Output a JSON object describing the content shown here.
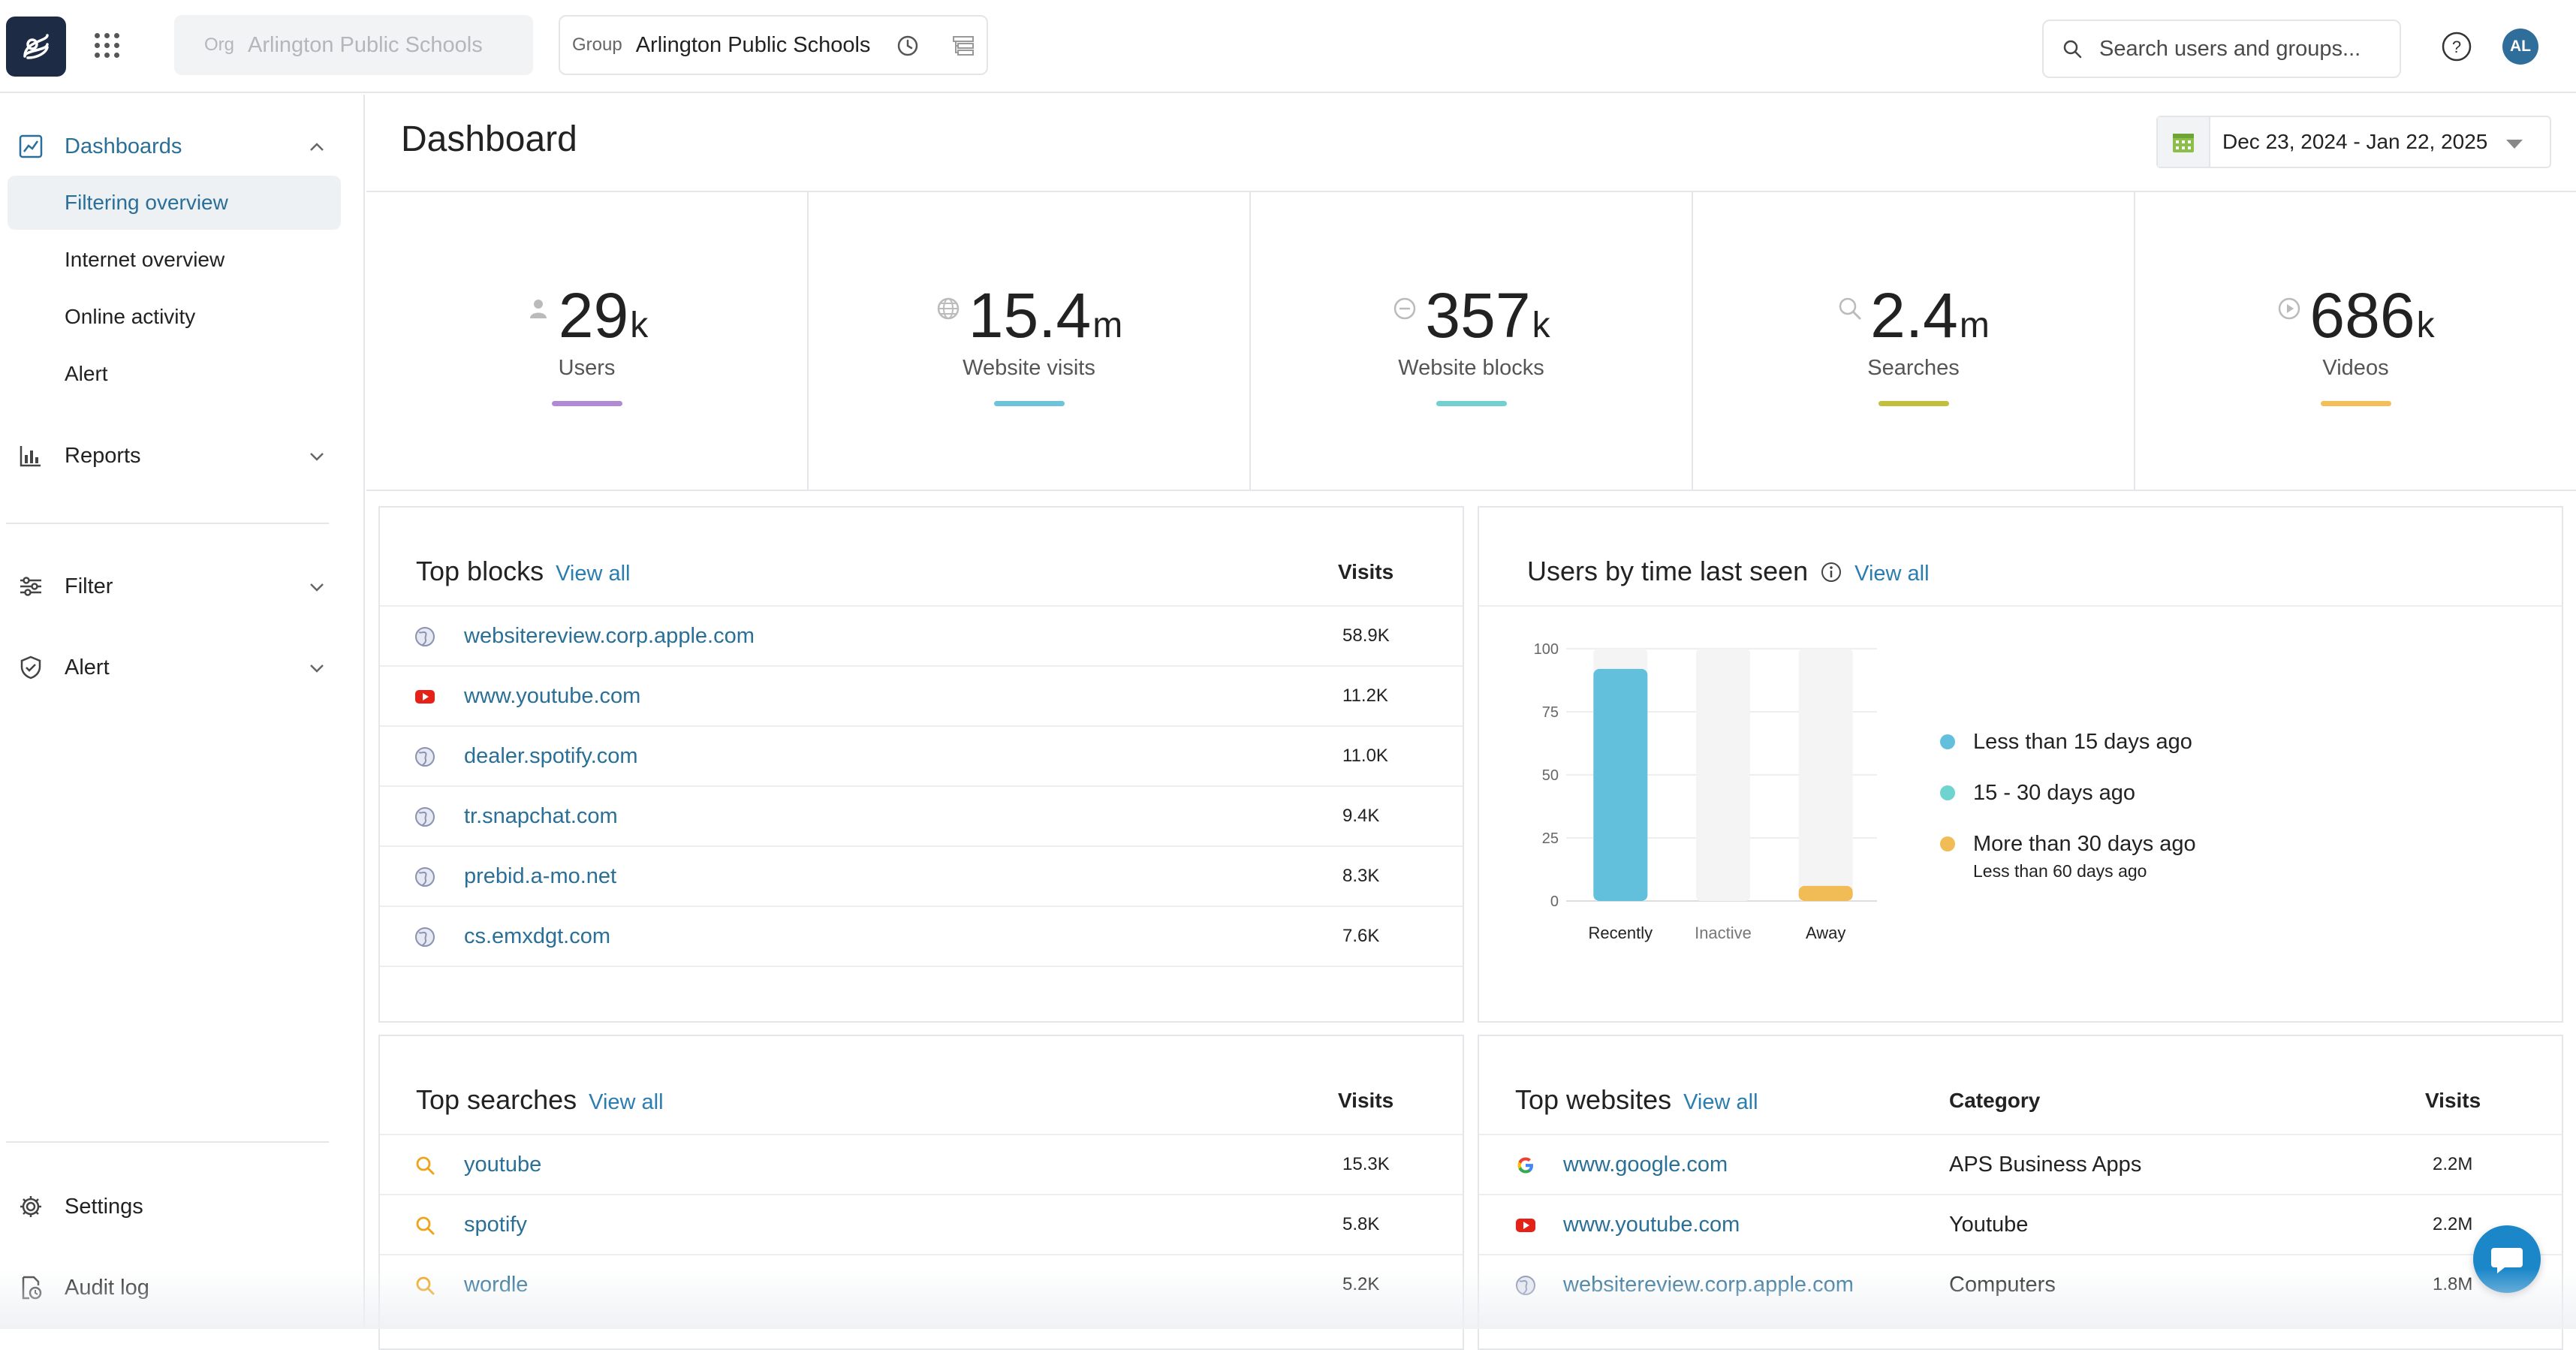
{
  "header": {
    "org_label": "Org",
    "org_value": "Arlington Public Schools",
    "group_label": "Group",
    "group_value": "Arlington Public Schools",
    "search_placeholder": "Search users and groups...",
    "avatar_initials": "AL"
  },
  "sidebar": {
    "dashboards_label": "Dashboards",
    "dashboard_items": [
      {
        "label": "Filtering overview",
        "active": true
      },
      {
        "label": "Internet overview"
      },
      {
        "label": "Online activity"
      },
      {
        "label": "Alert"
      }
    ],
    "reports_label": "Reports",
    "filter_label": "Filter",
    "alert_label": "Alert",
    "settings_label": "Settings",
    "audit_label": "Audit log"
  },
  "page": {
    "title": "Dashboard",
    "date_range": "Dec 23, 2024 - Jan 22, 2025"
  },
  "stats": [
    {
      "value": "29",
      "unit": "k",
      "label": "Users",
      "icon": "user-icon",
      "color": "#b28ad4"
    },
    {
      "value": "15.4",
      "unit": "m",
      "label": "Website visits",
      "icon": "globe-icon",
      "color": "#6cc3da"
    },
    {
      "value": "357",
      "unit": "k",
      "label": "Website blocks",
      "icon": "block-icon",
      "color": "#72d0d0"
    },
    {
      "value": "2.4",
      "unit": "m",
      "label": "Searches",
      "icon": "search-icon",
      "color": "#c2be3e"
    },
    {
      "value": "686",
      "unit": "k",
      "label": "Videos",
      "icon": "play-icon",
      "color": "#f2bf5a"
    }
  ],
  "top_blocks": {
    "title": "Top blocks",
    "view_all": "View all",
    "visits_header": "Visits",
    "rows": [
      {
        "site": "websitereview.corp.apple.com",
        "visits": "58.9K",
        "icon": "globe-icon"
      },
      {
        "site": "www.youtube.com",
        "visits": "11.2K",
        "icon": "youtube-icon"
      },
      {
        "site": "dealer.spotify.com",
        "visits": "11.0K",
        "icon": "globe-icon"
      },
      {
        "site": "tr.snapchat.com",
        "visits": "9.4K",
        "icon": "globe-icon"
      },
      {
        "site": "prebid.a-mo.net",
        "visits": "8.3K",
        "icon": "globe-icon"
      },
      {
        "site": "cs.emxdgt.com",
        "visits": "7.6K",
        "icon": "globe-icon"
      }
    ]
  },
  "users_last_seen": {
    "title": "Users by time last seen",
    "view_all": "View all",
    "legend": [
      {
        "label": "Less than 15 days ago",
        "color": "#62c0dc"
      },
      {
        "label": "15 - 30 days ago",
        "color": "#6fd3cf"
      },
      {
        "label": "More than 30 days ago",
        "sub": "Less than 60 days ago",
        "color": "#f1bc55"
      }
    ]
  },
  "chart_data": {
    "type": "bar",
    "categories": [
      "Recently",
      "Inactive",
      "Away"
    ],
    "values": [
      92,
      0,
      6
    ],
    "colors": [
      "#62c0dc",
      "#6fd3cf",
      "#f1bc55"
    ],
    "yticks": [
      0,
      25,
      50,
      75,
      100
    ],
    "ylim": [
      0,
      100
    ],
    "title": "Users by time last seen",
    "xlabel": "",
    "ylabel": ""
  },
  "top_searches": {
    "title": "Top searches",
    "view_all": "View all",
    "visits_header": "Visits",
    "rows": [
      {
        "term": "youtube",
        "visits": "15.3K"
      },
      {
        "term": "spotify",
        "visits": "5.8K"
      },
      {
        "term": "wordle",
        "visits": "5.2K"
      }
    ]
  },
  "top_websites": {
    "title": "Top websites",
    "view_all": "View all",
    "category_header": "Category",
    "visits_header": "Visits",
    "rows": [
      {
        "site": "www.google.com",
        "category": "APS Business Apps",
        "visits": "2.2M",
        "icon": "google-icon"
      },
      {
        "site": "www.youtube.com",
        "category": "Youtube",
        "visits": "2.2M",
        "icon": "youtube-icon"
      },
      {
        "site": "websitereview.corp.apple.com",
        "category": "Computers",
        "visits": "1.8M",
        "icon": "globe-icon"
      }
    ]
  }
}
